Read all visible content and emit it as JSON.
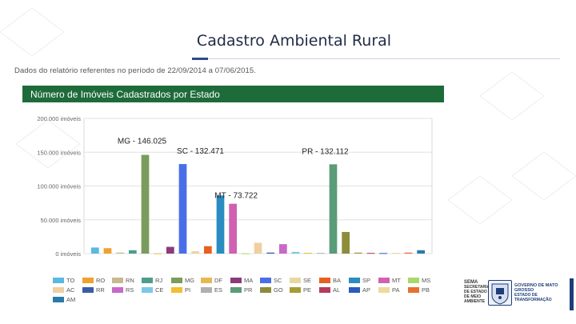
{
  "slide": {
    "title": "Cadastro Ambiental Rural",
    "report_period": "Dados do relatório referentes no período de 22/09/2014 a 07/06/2015."
  },
  "chart_header": "Número de Imóveis Cadastrados por Estado",
  "logos": {
    "sema_label": "SEMA",
    "sema_sub": "SECRETARIA DE ESTADO DE MEIO AMBIENTE",
    "gov_label": "GOVERNO DE MATO GROSSO",
    "gov_sub": "ESTADO DE TRANSFORMAÇÃO"
  },
  "chart_data": {
    "type": "bar",
    "title": "",
    "xlabel": "",
    "ylabel": "",
    "ylim": [
      0,
      200000
    ],
    "grid": true,
    "legend_placement": "bottom",
    "yticks": [
      "0 imóveis",
      "50.000 imóveis",
      "100.000 imóveis",
      "150.000 imóveis",
      "200.000 imóveis"
    ],
    "series": [
      {
        "name": "TO",
        "value": 9000,
        "color": "#5bb8e0"
      },
      {
        "name": "RO",
        "value": 8000,
        "color": "#f0a030"
      },
      {
        "name": "RN",
        "value": 1500,
        "color": "#c8b890"
      },
      {
        "name": "RJ",
        "value": 5000,
        "color": "#4f9c8c"
      },
      {
        "name": "MG",
        "value": 146025,
        "color": "#7a9c5c"
      },
      {
        "name": "DF",
        "value": 400,
        "color": "#e8b850"
      },
      {
        "name": "MA",
        "value": 10000,
        "color": "#8c3a7c"
      },
      {
        "name": "SC",
        "value": 132471,
        "color": "#4a6ee8"
      },
      {
        "name": "SE",
        "value": 3500,
        "color": "#e8d8a0"
      },
      {
        "name": "BA",
        "value": 11000,
        "color": "#e86020"
      },
      {
        "name": "SP",
        "value": 86000,
        "color": "#2a8cc0"
      },
      {
        "name": "MT",
        "value": 73722,
        "color": "#d060b0"
      },
      {
        "name": "MS",
        "value": 500,
        "color": "#a8d868"
      },
      {
        "name": "AC",
        "value": 16000,
        "color": "#f0d0a0"
      },
      {
        "name": "RR",
        "value": 1500,
        "color": "#3a5ca8"
      },
      {
        "name": "RS",
        "value": 14000,
        "color": "#c868c8"
      },
      {
        "name": "CE",
        "value": 2500,
        "color": "#7cc8e8"
      },
      {
        "name": "PI",
        "value": 1200,
        "color": "#f0c030"
      },
      {
        "name": "ES",
        "value": 1000,
        "color": "#b0b0b0"
      },
      {
        "name": "PR",
        "value": 132112,
        "color": "#5a9c78"
      },
      {
        "name": "GO",
        "value": 32000,
        "color": "#8c8c3a"
      },
      {
        "name": "PE",
        "value": 1500,
        "color": "#a89c30"
      },
      {
        "name": "AL",
        "value": 1000,
        "color": "#b83a5c"
      },
      {
        "name": "AP",
        "value": 800,
        "color": "#2a5cc0"
      },
      {
        "name": "PA",
        "value": 1200,
        "color": "#f0d8a0"
      },
      {
        "name": "PB",
        "value": 1500,
        "color": "#e87030"
      },
      {
        "name": "AM",
        "value": 5000,
        "color": "#2a7ca8"
      }
    ],
    "annotations": [
      {
        "text": "MG - 146.025",
        "series": "MG"
      },
      {
        "text": "SC - 132.471",
        "series": "SC"
      },
      {
        "text": "PR - 132.112",
        "series": "PR"
      },
      {
        "text": "MT - 73.722",
        "series": "MT"
      }
    ]
  }
}
